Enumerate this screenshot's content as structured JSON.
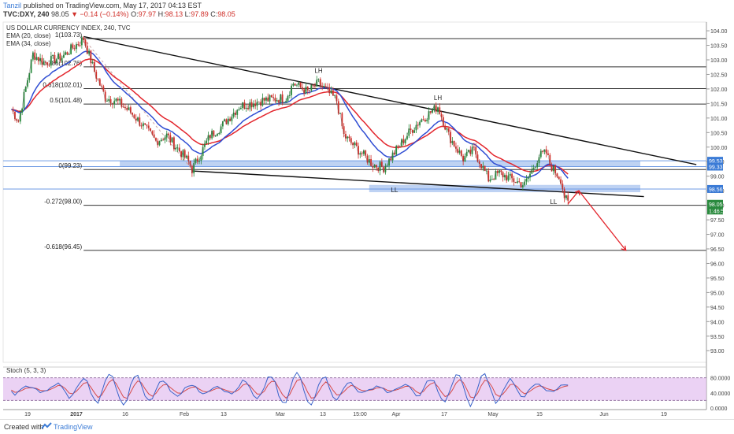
{
  "header": {
    "author": "Tanzil",
    "published": "published on TradingView.com, May 17, 2017 04:13 EST",
    "symbol": "TVC:DXY, 240",
    "last": "98.05",
    "change": "▼ −0.14 (−0.14%)",
    "ohlc_labels": [
      "O:",
      "H:",
      "L:",
      "C:"
    ],
    "ohlc_values": [
      "97.97",
      "98.13",
      "97.89",
      "98.05"
    ]
  },
  "legend": {
    "title": "US DOLLAR CURRENCY INDEX, 240, TVC",
    "ema20": "EMA (20, close)",
    "ema34": "EMA (34, close)"
  },
  "footer": {
    "created_with": "Created with",
    "brand": "TradingView"
  },
  "colors": {
    "price_up": "#2a8a3e",
    "price_down": "#d0302a",
    "ema20": "#2f4dd3",
    "ema34": "#e3262d",
    "zone": "#6f9be4",
    "stoch_bg": "#e2bff0",
    "stoch_k": "#3a63c9",
    "stoch_d": "#d64a4a",
    "arrow": "#e3262d"
  },
  "chart_data": [
    {
      "type": "line",
      "title": "US DOLLAR CURRENCY INDEX, 240, TVC",
      "ylim": [
        92.6,
        104.3
      ],
      "yticks": [
        "104.00",
        "103.50",
        "103.00",
        "102.50",
        "102.00",
        "101.50",
        "101.00",
        "100.50",
        "100.00",
        "99.50",
        "99.00",
        "98.50",
        "98.00",
        "97.50",
        "97.00",
        "96.50",
        "96.00",
        "95.50",
        "95.00",
        "94.50",
        "94.00",
        "93.50",
        "93.00"
      ],
      "xticks": [
        "19",
        "2017",
        "16",
        "Feb",
        "13",
        "Mar",
        "13",
        "15:00",
        "Apr",
        "17",
        "May",
        "15",
        "Jun",
        "19"
      ],
      "price_path": [
        [
          "Dec 14",
          101.3
        ],
        [
          "Dec 16",
          100.9
        ],
        [
          "Dec 20",
          103.2
        ],
        [
          "Dec 23",
          102.9
        ],
        [
          "Dec 28",
          103.1
        ],
        [
          "Jan 3",
          103.73
        ],
        [
          "Jan 6",
          102.6
        ],
        [
          "Jan 9",
          101.7
        ],
        [
          "Jan 12",
          101.6
        ],
        [
          "Jan 16",
          101.2
        ],
        [
          "Jan 19",
          100.8
        ],
        [
          "Jan 23",
          100.2
        ],
        [
          "Jan 26",
          100.4
        ],
        [
          "Feb 1",
          99.5
        ],
        [
          "Feb 2",
          99.23
        ],
        [
          "Feb 7",
          100.4
        ],
        [
          "Feb 10",
          100.7
        ],
        [
          "Feb 15",
          101.4
        ],
        [
          "Feb 21",
          101.6
        ],
        [
          "Feb 28",
          101.7
        ],
        [
          "Mar 2",
          102.2
        ],
        [
          "Mar 6",
          101.9
        ],
        [
          "Mar 9",
          102.2
        ],
        [
          "Mar 14",
          101.6
        ],
        [
          "Mar 16",
          100.4
        ],
        [
          "Mar 20",
          99.9
        ],
        [
          "Mar 24",
          99.4
        ],
        [
          "Mar 27",
          99.3
        ],
        [
          "Apr 3",
          100.5
        ],
        [
          "Apr 6",
          100.9
        ],
        [
          "Apr 11",
          101.4
        ],
        [
          "Apr 14",
          100.4
        ],
        [
          "Apr 18",
          99.6
        ],
        [
          "Apr 21",
          99.9
        ],
        [
          "Apr 25",
          98.9
        ],
        [
          "Apr 28",
          99.1
        ],
        [
          "May 3",
          98.8
        ],
        [
          "May 5",
          98.7
        ],
        [
          "May 9",
          99.7
        ],
        [
          "May 11",
          99.8
        ],
        [
          "May 12",
          99.4
        ],
        [
          "May 15",
          98.9
        ],
        [
          "May 16",
          98.3
        ],
        [
          "May 17",
          98.05
        ]
      ],
      "levels": [
        {
          "label": "1(103.73)",
          "value": 103.73
        },
        {
          "label": "0.786(102.76)",
          "value": 102.76
        },
        {
          "label": "0.618(102.01)",
          "value": 102.01
        },
        {
          "label": "0.5(101.48)",
          "value": 101.48
        },
        {
          "label": "0(99.23)",
          "value": 99.23
        },
        {
          "label": "-0.272(98.00)",
          "value": 98.0
        },
        {
          "label": "-0.618(96.45)",
          "value": 96.45
        }
      ],
      "zones": [
        {
          "from": 99.33,
          "to": 99.53
        },
        {
          "from": 98.45,
          "to": 98.7
        }
      ],
      "annotations": [
        "LH",
        "LH",
        "LL",
        "LL"
      ],
      "price_labels": [
        {
          "text": "99.53",
          "color": "#3b7bd6"
        },
        {
          "text": "99.33",
          "color": "#3b7bd6"
        },
        {
          "text": "98.56",
          "color": "#3b7bd6"
        },
        {
          "text": "98.05",
          "color": "#2a8a3e"
        },
        {
          "text": "1:46:54",
          "color": "#2a8a3e"
        }
      ]
    },
    {
      "type": "line",
      "title": "Stoch (5, 3, 3)",
      "ylim": [
        0,
        100
      ],
      "yticks": [
        "80.0000",
        "40.0000",
        "0.0000"
      ],
      "bands": [
        20,
        80
      ]
    }
  ]
}
